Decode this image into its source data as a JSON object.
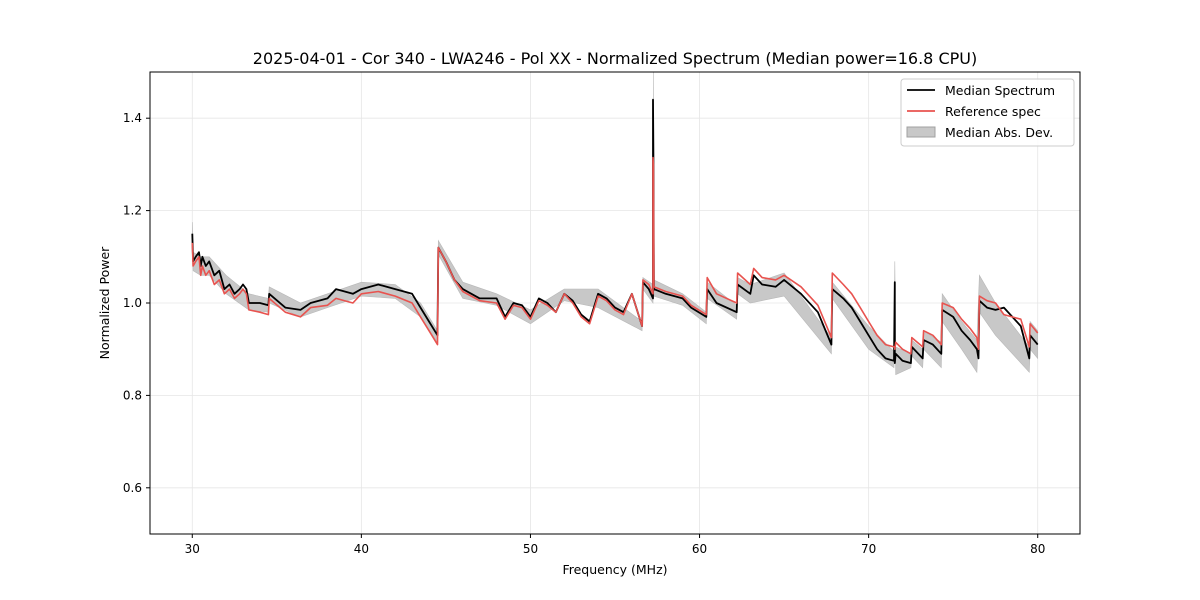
{
  "chart_data": {
    "type": "line",
    "title": "2025-04-01 - Cor 340 - LWA246 - Pol XX - Normalized Spectrum (Median power=16.8 CPU)",
    "xlabel": "Frequency (MHz)",
    "ylabel": "Normalized Power",
    "xlim": [
      27.5,
      82.5
    ],
    "ylim": [
      0.5,
      1.5
    ],
    "xticks": [
      30,
      40,
      50,
      60,
      70,
      80
    ],
    "yticks": [
      0.6,
      0.8,
      1.0,
      1.2,
      1.4
    ],
    "grid": true,
    "legend_position": "top-right",
    "colors": {
      "median": "#000000",
      "reference": "#e8534f",
      "mad": "#c8c8c8"
    },
    "series": [
      {
        "name": "Median Spectrum",
        "x": [
          30.0,
          30.05,
          30.2,
          30.4,
          30.5,
          30.6,
          30.8,
          31.0,
          31.3,
          31.6,
          31.9,
          32.2,
          32.5,
          32.8,
          33.0,
          33.2,
          33.35,
          34.0,
          34.5,
          34.55,
          35.5,
          36.4,
          37.0,
          38.0,
          38.5,
          39.5,
          40.0,
          41.0,
          42.0,
          43.0,
          43.5,
          44.0,
          44.5,
          44.55,
          45.0,
          45.5,
          46.0,
          47.0,
          48.0,
          48.5,
          49.0,
          49.5,
          50.0,
          50.5,
          51.0,
          51.5,
          52.0,
          52.5,
          53.0,
          53.5,
          54.0,
          54.5,
          55.0,
          55.5,
          56.0,
          56.6,
          56.65,
          57.0,
          57.25,
          57.25,
          57.27,
          57.3,
          58.0,
          59.0,
          59.5,
          60.4,
          60.45,
          61.0,
          62.2,
          62.25,
          63.0,
          63.2,
          63.7,
          64.5,
          65.0,
          66.0,
          67.0,
          67.8,
          67.85,
          68.5,
          69.0,
          69.5,
          70.0,
          70.5,
          71.0,
          71.5,
          71.55,
          71.55,
          71.6,
          72.0,
          72.5,
          72.55,
          73.2,
          73.25,
          73.8,
          74.3,
          74.35,
          75.0,
          75.5,
          76.0,
          76.4,
          76.5,
          76.55,
          77.0,
          77.5,
          78.0,
          79.0,
          79.5,
          79.55,
          80.0
        ],
        "y": [
          1.15,
          1.09,
          1.1,
          1.11,
          1.08,
          1.1,
          1.08,
          1.09,
          1.06,
          1.07,
          1.03,
          1.04,
          1.02,
          1.03,
          1.04,
          1.03,
          1.0,
          1.0,
          0.995,
          1.02,
          0.99,
          0.985,
          1.0,
          1.01,
          1.03,
          1.02,
          1.03,
          1.04,
          1.03,
          1.02,
          0.99,
          0.96,
          0.93,
          1.12,
          1.09,
          1.05,
          1.03,
          1.01,
          1.01,
          0.97,
          1.0,
          0.995,
          0.97,
          1.01,
          1.0,
          0.98,
          1.02,
          1.005,
          0.975,
          0.96,
          1.02,
          1.01,
          0.99,
          0.98,
          1.02,
          0.95,
          1.045,
          1.03,
          1.01,
          1.44,
          1.32,
          1.03,
          1.02,
          1.01,
          0.99,
          0.97,
          1.03,
          1.0,
          0.98,
          1.04,
          1.02,
          1.06,
          1.04,
          1.035,
          1.05,
          1.02,
          0.98,
          0.91,
          1.03,
          1.01,
          0.99,
          0.96,
          0.93,
          0.9,
          0.88,
          0.875,
          1.045,
          0.87,
          0.89,
          0.875,
          0.87,
          0.905,
          0.88,
          0.92,
          0.91,
          0.89,
          0.985,
          0.97,
          0.94,
          0.92,
          0.9,
          0.88,
          1.005,
          0.99,
          0.985,
          0.99,
          0.95,
          0.88,
          0.93,
          0.91
        ]
      },
      {
        "name": "Reference spec",
        "x": [
          30.0,
          30.05,
          30.2,
          30.4,
          30.5,
          30.6,
          30.8,
          31.0,
          31.3,
          31.6,
          31.9,
          32.2,
          32.5,
          32.8,
          33.0,
          33.2,
          33.35,
          34.0,
          34.5,
          34.55,
          35.5,
          36.4,
          37.0,
          38.0,
          38.5,
          39.5,
          40.0,
          41.0,
          42.0,
          43.0,
          43.5,
          44.0,
          44.5,
          44.55,
          45.0,
          45.5,
          46.0,
          47.0,
          48.0,
          48.5,
          49.0,
          49.5,
          50.0,
          50.5,
          51.0,
          51.5,
          52.0,
          52.5,
          53.0,
          53.5,
          54.0,
          54.5,
          55.0,
          55.5,
          56.0,
          56.6,
          56.65,
          57.0,
          57.25,
          57.25,
          57.27,
          57.3,
          58.0,
          59.0,
          59.5,
          60.4,
          60.45,
          61.0,
          62.2,
          62.25,
          63.0,
          63.2,
          63.7,
          64.5,
          65.0,
          66.0,
          67.0,
          67.8,
          67.85,
          68.5,
          69.0,
          69.5,
          70.0,
          70.5,
          71.0,
          71.5,
          71.55,
          71.55,
          71.6,
          72.0,
          72.5,
          72.55,
          73.2,
          73.25,
          73.8,
          74.3,
          74.35,
          75.0,
          75.5,
          76.0,
          76.4,
          76.5,
          76.55,
          77.0,
          77.5,
          78.0,
          79.0,
          79.5,
          79.55,
          80.0
        ],
        "y": [
          1.13,
          1.08,
          1.09,
          1.1,
          1.06,
          1.08,
          1.06,
          1.07,
          1.04,
          1.05,
          1.02,
          1.03,
          1.01,
          1.02,
          1.03,
          1.02,
          0.985,
          0.98,
          0.975,
          1.01,
          0.98,
          0.97,
          0.99,
          0.995,
          1.01,
          1.0,
          1.02,
          1.025,
          1.015,
          1.0,
          0.97,
          0.94,
          0.91,
          1.12,
          1.09,
          1.05,
          1.025,
          1.005,
          1.0,
          0.965,
          0.995,
          0.99,
          0.965,
          1.005,
          0.995,
          0.98,
          1.02,
          1.0,
          0.97,
          0.955,
          1.015,
          1.005,
          0.985,
          0.975,
          1.02,
          0.95,
          1.05,
          1.04,
          1.02,
          1.315,
          1.3,
          1.035,
          1.025,
          1.015,
          0.995,
          0.975,
          1.055,
          1.02,
          1.0,
          1.065,
          1.04,
          1.075,
          1.055,
          1.05,
          1.06,
          1.035,
          0.995,
          0.925,
          1.065,
          1.04,
          1.02,
          0.99,
          0.96,
          0.93,
          0.91,
          0.905,
          0.905,
          0.9,
          0.915,
          0.9,
          0.89,
          0.925,
          0.905,
          0.94,
          0.93,
          0.91,
          1.0,
          0.99,
          0.965,
          0.945,
          0.925,
          0.9,
          1.015,
          1.005,
          1.0,
          0.975,
          0.965,
          0.905,
          0.955,
          0.935
        ]
      }
    ],
    "band": {
      "name": "Median Abs. Dev.",
      "x": [
        30.0,
        30.05,
        30.5,
        31.0,
        32.0,
        33.35,
        34.5,
        34.55,
        36.4,
        38.0,
        40.0,
        42.0,
        43.5,
        44.5,
        44.55,
        46.0,
        48.0,
        50.0,
        52.0,
        54.0,
        56.6,
        56.65,
        57.25,
        57.27,
        57.3,
        59.0,
        60.4,
        60.45,
        62.2,
        62.25,
        63.0,
        65.0,
        67.8,
        67.85,
        70.0,
        71.5,
        71.55,
        71.6,
        72.5,
        72.55,
        73.2,
        73.25,
        74.3,
        74.35,
        75.5,
        76.4,
        76.55,
        77.5,
        79.5,
        79.55,
        80.0
      ],
      "upper": [
        1.175,
        1.11,
        1.1,
        1.1,
        1.06,
        1.02,
        1.01,
        1.035,
        1.0,
        1.02,
        1.045,
        1.04,
        1.0,
        0.94,
        1.135,
        1.045,
        1.02,
        0.985,
        1.03,
        1.03,
        0.96,
        1.055,
        1.04,
        1.5,
        1.05,
        1.02,
        0.98,
        1.045,
        0.995,
        1.055,
        1.04,
        1.065,
        0.925,
        1.045,
        0.95,
        0.895,
        1.09,
        0.905,
        0.89,
        0.92,
        0.9,
        0.94,
        0.915,
        1.02,
        0.96,
        0.92,
        1.06,
        1.0,
        0.905,
        0.96,
        0.94
      ],
      "lower": [
        1.125,
        1.07,
        1.06,
        1.06,
        1.02,
        0.985,
        0.98,
        1.0,
        0.97,
        0.99,
        1.015,
        1.01,
        0.97,
        0.915,
        1.105,
        1.01,
        0.995,
        0.955,
        1.005,
        0.99,
        0.94,
        1.03,
        1.0,
        1.2,
        1.015,
        0.995,
        0.955,
        1.01,
        0.965,
        1.02,
        1.0,
        1.015,
        0.89,
        1.01,
        0.9,
        0.86,
        1.0,
        0.845,
        0.86,
        0.885,
        0.86,
        0.9,
        0.86,
        0.96,
        0.9,
        0.85,
        0.98,
        0.93,
        0.85,
        0.9,
        0.88
      ]
    }
  }
}
